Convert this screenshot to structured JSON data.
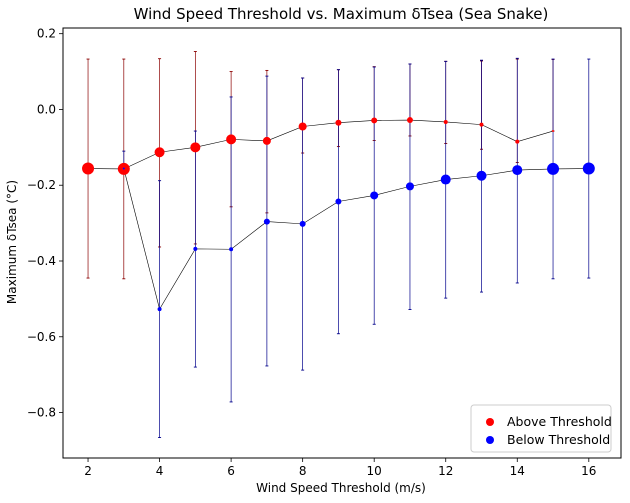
{
  "chart_data": {
    "type": "scatter",
    "title": "Wind Speed Threshold vs. Maximum δTsea (Sea Snake)",
    "xlabel": "Wind Speed Threshold (m/s)",
    "ylabel": "Maximum δTsea (°C)",
    "xlim": [
      1.3,
      16.9
    ],
    "ylim": [
      -0.92,
      0.215
    ],
    "xticks": [
      2,
      4,
      6,
      8,
      10,
      12,
      14,
      16
    ],
    "yticks": [
      -0.8,
      -0.6,
      -0.4,
      -0.2,
      0.0,
      0.2
    ],
    "ytick_labels": [
      "−0.8",
      "−0.6",
      "−0.4",
      "−0.2",
      "0.0",
      "0.2"
    ],
    "grid": false,
    "legend_position": "lower-right",
    "series": [
      {
        "name": "Above Threshold",
        "color": "#ff0000",
        "errorbar_color": "#8b0000",
        "x": [
          2,
          3,
          4,
          5,
          6,
          7,
          8,
          9,
          10,
          11,
          12,
          13,
          14,
          15
        ],
        "y": [
          -0.156,
          -0.157,
          -0.113,
          -0.1,
          -0.079,
          -0.083,
          -0.045,
          -0.035,
          -0.029,
          -0.028,
          -0.033,
          -0.04,
          -0.085,
          -0.057
        ],
        "err_low": [
          -0.445,
          -0.447,
          -0.363,
          -0.355,
          -0.257,
          -0.273,
          -0.115,
          -0.098,
          -0.082,
          -0.07,
          -0.09,
          -0.105,
          -0.14,
          -0.057
        ],
        "err_high": [
          0.133,
          0.133,
          0.134,
          0.153,
          0.1,
          0.103,
          0.083,
          0.105,
          0.113,
          0.12,
          0.127,
          0.128,
          0.133,
          0.132
        ],
        "marker_size": [
          6,
          6,
          5,
          5,
          5,
          4,
          4,
          3,
          3,
          3,
          2,
          2,
          2,
          1
        ]
      },
      {
        "name": "Below Threshold",
        "color": "#0000ff",
        "errorbar_color": "#00008b",
        "x": [
          3,
          4,
          5,
          6,
          7,
          8,
          9,
          10,
          11,
          12,
          13,
          14,
          15,
          16
        ],
        "y": [
          -0.156,
          -0.527,
          -0.368,
          -0.369,
          -0.296,
          -0.302,
          -0.243,
          -0.227,
          -0.203,
          -0.185,
          -0.175,
          -0.16,
          -0.157,
          -0.156
        ],
        "err_low": [
          -0.158,
          -0.866,
          -0.68,
          -0.772,
          -0.677,
          -0.688,
          -0.592,
          -0.567,
          -0.528,
          -0.498,
          -0.482,
          -0.458,
          -0.447,
          -0.445
        ],
        "err_high": [
          -0.11,
          -0.188,
          -0.057,
          0.033,
          0.088,
          0.083,
          0.105,
          0.112,
          0.12,
          0.127,
          0.13,
          0.135,
          0.133,
          0.133
        ],
        "marker_size": [
          1,
          2,
          2,
          2,
          3,
          3,
          3,
          4,
          4,
          5,
          5,
          5,
          6,
          6
        ]
      }
    ]
  }
}
